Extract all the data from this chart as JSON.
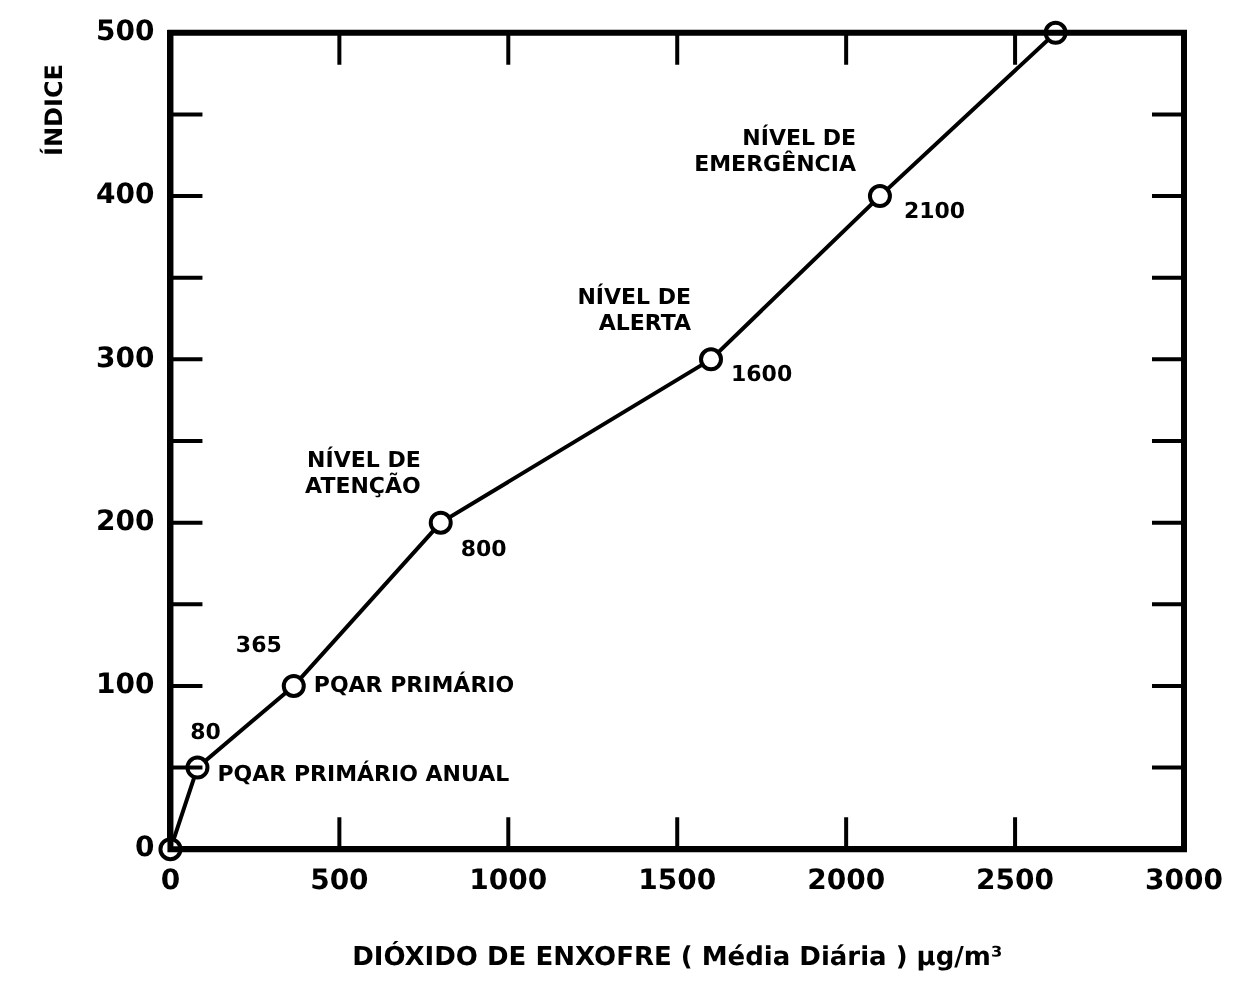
{
  "chart_data": {
    "type": "line",
    "xlabel": "DIÓXIDO DE ENXOFRE ( Média Diária ) µg/m³",
    "ylabel": "ÍNDICE",
    "x": [
      0,
      80,
      365,
      800,
      1600,
      2100,
      2620
    ],
    "series": [
      {
        "color": "#000000",
        "values": [
          0,
          50,
          100,
          200,
          300,
          400,
          500
        ]
      }
    ],
    "xlim": [
      0,
      3000
    ],
    "xticks": [
      0,
      500,
      1000,
      1500,
      2000,
      2500,
      3000
    ],
    "ylim": [
      0,
      500
    ],
    "yticks": [
      0,
      {
        "value": 50,
        "label": null
      },
      100,
      {
        "value": 150,
        "label": null
      },
      200,
      {
        "value": 250,
        "label": null
      },
      300,
      {
        "value": 350,
        "label": null
      },
      400,
      {
        "value": 450,
        "label": null
      },
      500
    ],
    "marker": "circle",
    "line_style": "solid",
    "grid": false,
    "legend": false,
    "annotations": [
      {
        "text": "80",
        "x": 80,
        "y": 50
      },
      {
        "text": "PQAR PRIMÁRIO ANUAL",
        "x": 80,
        "y": 50
      },
      {
        "text": "365",
        "x": 365,
        "y": 100
      },
      {
        "text": "PQAR PRIMÁRIO",
        "x": 365,
        "y": 100
      },
      {
        "text": "NÍVEL DE\nATENÇÃO",
        "x": 800,
        "y": 200
      },
      {
        "text": "800",
        "x": 800,
        "y": 200
      },
      {
        "text": "NÍVEL DE\nALERTA",
        "x": 1600,
        "y": 300
      },
      {
        "text": "1600",
        "x": 1600,
        "y": 300
      },
      {
        "text": "NÍVEL DE\nEMERGÊNCIA",
        "x": 2100,
        "y": 400
      },
      {
        "text": "2100",
        "x": 2100,
        "y": 400
      }
    ]
  }
}
